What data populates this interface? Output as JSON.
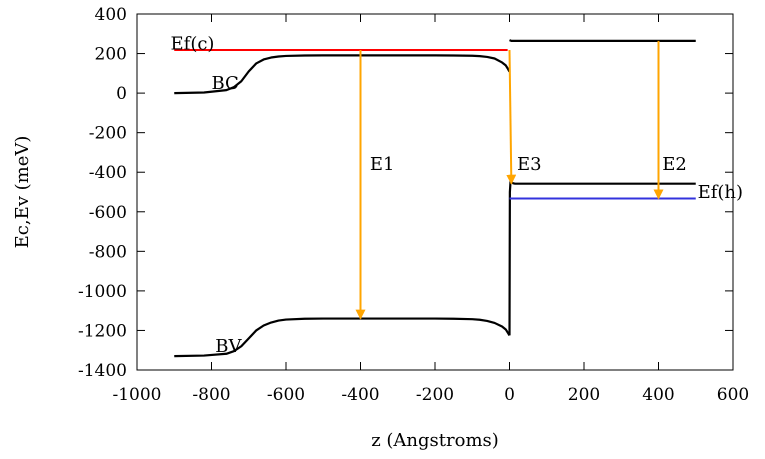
{
  "chart_data": {
    "type": "line",
    "title": "",
    "xlabel": "z (Angstroms)",
    "ylabel": "Ec,Ev (meV)",
    "xlim": [
      -1000,
      600
    ],
    "ylim": [
      -1400,
      400
    ],
    "xticks": [
      -1000,
      -800,
      -600,
      -400,
      -200,
      0,
      200,
      400,
      600
    ],
    "yticks": [
      -1400,
      -1200,
      -1000,
      -800,
      -600,
      -400,
      -200,
      0,
      200,
      400
    ],
    "grid": false,
    "legend": "none",
    "series": [
      {
        "color": "#000000",
        "x": [
          -900,
          -820,
          -760,
          -740,
          -720,
          -700,
          -680,
          -660,
          -640,
          -620,
          -600,
          -550,
          -500,
          -400,
          -300,
          -200,
          -150,
          -100,
          -80,
          -60,
          -40,
          -20,
          -10,
          -5,
          0
        ],
        "y": [
          0,
          3,
          15,
          30,
          60,
          110,
          150,
          170,
          180,
          185,
          188,
          190,
          191,
          191,
          191,
          191,
          190,
          189,
          187,
          183,
          175,
          155,
          140,
          125,
          108
        ]
      },
      {
        "color": "#000000",
        "x": [
          0,
          5,
          10,
          20,
          30,
          500
        ],
        "y": [
          268,
          264,
          264,
          264,
          264,
          264
        ]
      },
      {
        "color": "#000000",
        "x": [
          -900,
          -820,
          -760,
          -740,
          -720,
          -700,
          -680,
          -660,
          -640,
          -620,
          -600,
          -550,
          -500,
          -400,
          -300,
          -200,
          -150,
          -100,
          -80,
          -60,
          -40,
          -20,
          -10,
          -5,
          0
        ],
        "y": [
          -1330,
          -1327,
          -1318,
          -1305,
          -1280,
          -1240,
          -1200,
          -1175,
          -1160,
          -1150,
          -1145,
          -1141,
          -1140,
          -1140,
          -1140,
          -1140,
          -1141,
          -1143,
          -1146,
          -1152,
          -1162,
          -1180,
          -1195,
          -1210,
          -1225
        ]
      },
      {
        "color": "#000000",
        "x": [
          0,
          1,
          3,
          6,
          10,
          15,
          25,
          40,
          60,
          100,
          200,
          300,
          400,
          500
        ],
        "y": [
          -1225,
          -500,
          -440,
          -452,
          -456,
          -458,
          -458,
          -458,
          -458,
          -458,
          -458,
          -458,
          -458,
          -458
        ]
      }
    ],
    "hlines": [
      {
        "label": "Ef(c)",
        "y": 218,
        "x_start": -900,
        "x_end": -5,
        "color": "#ff0000"
      },
      {
        "label": "Ef(h)",
        "y": -533,
        "x_start": 0,
        "x_end": 500,
        "color": "#3333dd"
      }
    ],
    "arrows": [
      {
        "label": "E1",
        "x": -400,
        "y_from": 218,
        "y_to": -1140,
        "color": "#ffa500"
      },
      {
        "label": "E3",
        "x_from": 0,
        "x_to": 5,
        "y_from": 218,
        "y_to": -458,
        "color": "#ffa500"
      },
      {
        "label": "E2",
        "x": 400,
        "y_from": 264,
        "y_to": -533,
        "color": "#ffa500"
      }
    ],
    "annotations": [
      {
        "text": "BC",
        "x": -800,
        "y": 20
      },
      {
        "text": "BV",
        "x": -790,
        "y": -1310
      },
      {
        "text": "E1",
        "x": -375,
        "y": -390
      },
      {
        "text": "E3",
        "x": 20,
        "y": -390
      },
      {
        "text": "E2",
        "x": 410,
        "y": -390
      },
      {
        "text": "Ef(c)",
        "x": -910,
        "y": 220
      },
      {
        "text": "Ef(h)",
        "x": 505,
        "y": -530
      }
    ]
  }
}
